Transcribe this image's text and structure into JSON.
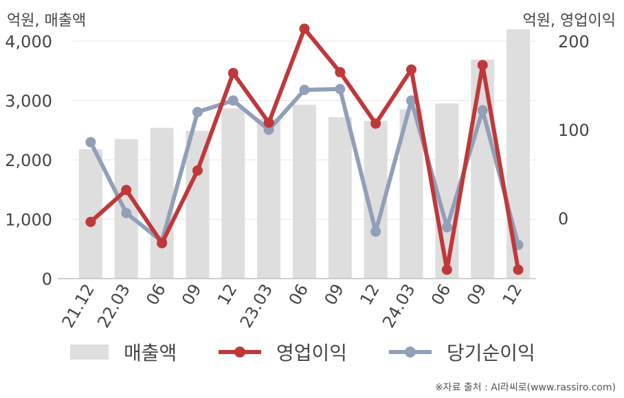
{
  "labels": {
    "left_unit": "억원, 매출액",
    "right_unit": "억원, 영업이익",
    "source": "※자료 출처 : AI라씨로(www.rassiro.com)"
  },
  "colors": {
    "revenue": "#dedede",
    "operating_profit": "#c0383a",
    "net_income": "#929fb8"
  },
  "chart_data": {
    "type": "bar+line",
    "categories": [
      "21.12",
      "22.03",
      "06",
      "09",
      "12",
      "23.03",
      "06",
      "09",
      "12",
      "24.03",
      "06",
      "09",
      "12"
    ],
    "left_axis": {
      "ylim": [
        0,
        4000
      ],
      "ticks": [
        "0",
        "1,000",
        "2,000",
        "3,000",
        "4,000"
      ],
      "tick_values": [
        0,
        1000,
        2000,
        3000,
        4000
      ]
    },
    "right_axis": {
      "ylim": [
        -68,
        200
      ],
      "ticks": [
        "0",
        "100",
        "200"
      ],
      "tick_values": [
        0,
        100,
        200
      ]
    },
    "series": [
      {
        "name": "매출액",
        "type": "bar",
        "axis": "left",
        "values": [
          2180,
          2350,
          2540,
          2490,
          2870,
          2700,
          2930,
          2720,
          2660,
          2850,
          2950,
          3690,
          4200
        ]
      },
      {
        "name": "영업이익",
        "type": "line",
        "axis": "right",
        "values": [
          -4,
          32,
          -28,
          54,
          164,
          108,
          214,
          165,
          107,
          168,
          -58,
          173,
          -58
        ]
      },
      {
        "name": "당기순이익",
        "type": "line",
        "axis": "right",
        "values": [
          86,
          6,
          -26,
          120,
          133,
          100,
          145,
          146,
          -15,
          133,
          -10,
          122,
          -30
        ]
      }
    ],
    "grid": true,
    "legend": "bottom"
  }
}
